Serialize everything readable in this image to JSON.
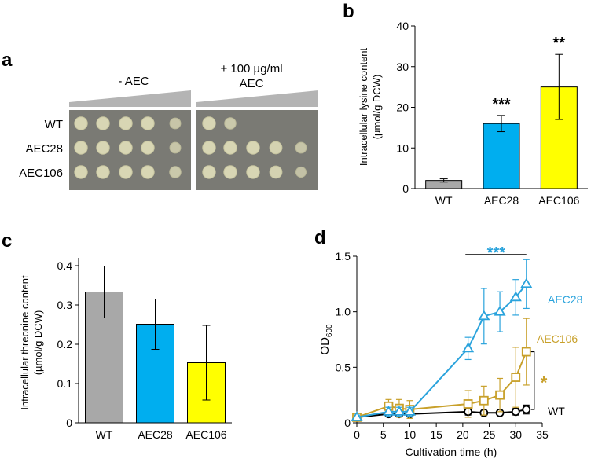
{
  "panel_letters": {
    "a": "a",
    "b": "b",
    "c": "c",
    "d": "d"
  },
  "panel_a": {
    "condition_minus": "- AEC",
    "condition_plus_line1": "+ 100 µg/ml",
    "condition_plus_line2": "AEC",
    "strains": [
      "WT",
      "AEC28",
      "AEC106"
    ],
    "growth_minus": [
      [
        1,
        1,
        1,
        1,
        0.6
      ],
      [
        1,
        1,
        1,
        1,
        0.6
      ],
      [
        1,
        1,
        1,
        1,
        0.7
      ]
    ],
    "growth_plus": [
      [
        1,
        0.7,
        0,
        0,
        0
      ],
      [
        1,
        1,
        1,
        0.9,
        0.6
      ],
      [
        1,
        1,
        1,
        0.9,
        0.5
      ]
    ]
  },
  "chart_data": [
    {
      "panel": "b",
      "type": "bar",
      "title": "",
      "xlabel": "",
      "ylabel_line1": "Intracellular lysine content",
      "ylabel_line2": "(µmol/g DCW)",
      "categories": [
        "WT",
        "AEC28",
        "AEC106"
      ],
      "values": [
        2,
        16,
        25
      ],
      "errors": [
        0.4,
        2,
        8
      ],
      "colors": [
        "#a8a8a8",
        "#00aeef",
        "#ffff00"
      ],
      "significance": [
        "",
        "***",
        "**"
      ],
      "ylim": [
        0,
        40
      ],
      "yticks": [
        0,
        10,
        20,
        30,
        40
      ]
    },
    {
      "panel": "c",
      "type": "bar",
      "title": "",
      "xlabel": "",
      "ylabel_line1": "Intracellular threonine content",
      "ylabel_line2": "(µmol/g DCW)",
      "categories": [
        "WT",
        "AEC28",
        "AEC106"
      ],
      "values": [
        0.333,
        0.251,
        0.153
      ],
      "errors": [
        0.066,
        0.064,
        0.095
      ],
      "colors": [
        "#a8a8a8",
        "#00aeef",
        "#ffff00"
      ],
      "ylim": [
        0,
        0.42
      ],
      "yticks": [
        "0",
        "0.1",
        "0.2",
        "0.3",
        "0.4"
      ]
    },
    {
      "panel": "d",
      "type": "line",
      "title": "",
      "xlabel": "Cultivation time (h)",
      "ylabel": "OD",
      "ylabel_sub": "600",
      "xlim": [
        0,
        35
      ],
      "ylim": [
        0,
        1.5
      ],
      "xticks": [
        0,
        5,
        10,
        15,
        20,
        25,
        30,
        35
      ],
      "yticks": [
        "0",
        "0.5",
        "1.0",
        "1.5"
      ],
      "series": [
        {
          "name": "AEC28",
          "marker": "triangle",
          "color": "#2aa3dc",
          "x": [
            0,
            6,
            8,
            10,
            21,
            24,
            27,
            30,
            32
          ],
          "y": [
            0.05,
            0.1,
            0.1,
            0.1,
            0.67,
            0.96,
            1.0,
            1.13,
            1.25
          ],
          "err": [
            0.02,
            0.04,
            0.04,
            0.04,
            0.1,
            0.25,
            0.18,
            0.16,
            0.22
          ]
        },
        {
          "name": "AEC106",
          "marker": "square",
          "color": "#c8a02a",
          "x": [
            0,
            6,
            8,
            10,
            21,
            24,
            27,
            30,
            32
          ],
          "y": [
            0.05,
            0.15,
            0.13,
            0.12,
            0.17,
            0.2,
            0.25,
            0.41,
            0.64
          ],
          "err": [
            0.02,
            0.06,
            0.08,
            0.08,
            0.12,
            0.13,
            0.15,
            0.27,
            0.3
          ]
        },
        {
          "name": "WT",
          "marker": "circle",
          "color": "#000000",
          "x": [
            0,
            6,
            8,
            10,
            21,
            24,
            27,
            30,
            32
          ],
          "y": [
            0.05,
            0.08,
            0.08,
            0.08,
            0.1,
            0.09,
            0.09,
            0.1,
            0.12
          ],
          "err": [
            0.02,
            0.02,
            0.02,
            0.02,
            0.03,
            0.02,
            0.02,
            0.03,
            0.04
          ]
        }
      ],
      "annotations": {
        "top_significance": "***",
        "side_significance": "*",
        "bracket_label": "*"
      }
    }
  ]
}
